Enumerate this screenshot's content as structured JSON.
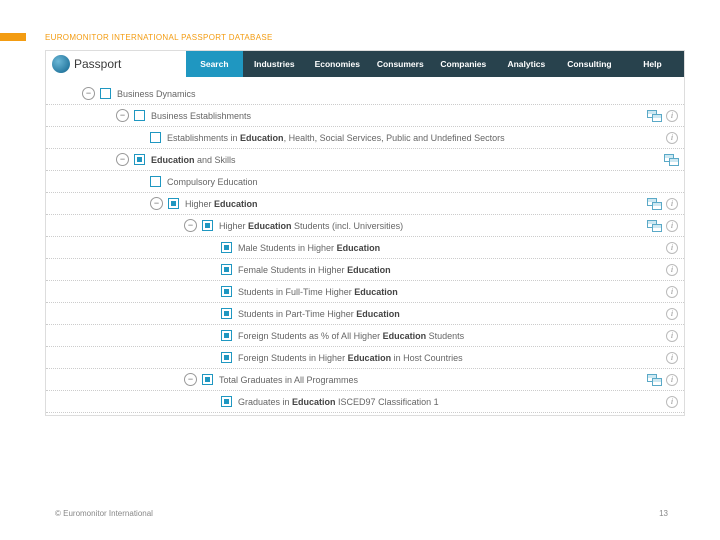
{
  "slide": {
    "title": "EUROMONITOR INTERNATIONAL PASSPORT DATABASE"
  },
  "logo": {
    "text": "Passport"
  },
  "nav": {
    "search": "Search",
    "industries": "Industries",
    "economies": "Economies",
    "consumers": "Consumers",
    "companies": "Companies",
    "analytics": "Analytics",
    "consulting": "Consulting",
    "help": "Help"
  },
  "tree": {
    "r0": {
      "indent": 36,
      "toggle": "−",
      "checked": false,
      "html": "Business Dynamics",
      "grid": false,
      "info": false
    },
    "r1": {
      "indent": 70,
      "toggle": "−",
      "checked": false,
      "html": "Business Establishments",
      "grid": true,
      "info": true
    },
    "r2": {
      "indent": 104,
      "toggle": "",
      "checked": false,
      "html": "Establishments in <b>Education</b>, Health, Social Services, Public and Undefined Sectors",
      "grid": false,
      "info": true
    },
    "r3": {
      "indent": 70,
      "toggle": "−",
      "checked": true,
      "html": "<b>Education</b> and Skills",
      "grid": true,
      "info": false
    },
    "r4": {
      "indent": 104,
      "toggle": "",
      "checked": false,
      "html": "Compulsory Education",
      "grid": false,
      "info": false
    },
    "r5": {
      "indent": 104,
      "toggle": "−",
      "checked": true,
      "html": "Higher <b>Education</b>",
      "grid": true,
      "info": true
    },
    "r6": {
      "indent": 138,
      "toggle": "−",
      "checked": true,
      "html": "Higher <b>Education</b> Students (incl. Universities)",
      "grid": true,
      "info": true
    },
    "r7": {
      "indent": 175,
      "toggle": "",
      "checked": true,
      "html": "Male Students in Higher <b>Education</b>",
      "grid": false,
      "info": true
    },
    "r8": {
      "indent": 175,
      "toggle": "",
      "checked": true,
      "html": "Female Students in Higher <b>Education</b>",
      "grid": false,
      "info": true
    },
    "r9": {
      "indent": 175,
      "toggle": "",
      "checked": true,
      "html": "Students in Full-Time Higher <b>Education</b>",
      "grid": false,
      "info": true
    },
    "r10": {
      "indent": 175,
      "toggle": "",
      "checked": true,
      "html": "Students in Part-Time Higher <b>Education</b>",
      "grid": false,
      "info": true
    },
    "r11": {
      "indent": 175,
      "toggle": "",
      "checked": true,
      "html": "Foreign Students as % of All Higher <b>Education</b> Students",
      "grid": false,
      "info": true
    },
    "r12": {
      "indent": 175,
      "toggle": "",
      "checked": true,
      "html": "Foreign Students in Higher <b>Education</b> in Host Countries",
      "grid": false,
      "info": true
    },
    "r13": {
      "indent": 138,
      "toggle": "−",
      "checked": true,
      "html": "Total Graduates in All Programmes",
      "grid": true,
      "info": true
    },
    "r14": {
      "indent": 175,
      "toggle": "",
      "checked": true,
      "html": "Graduates in <b>Education</b> ISCED97 Classification 1",
      "grid": false,
      "info": true
    }
  },
  "footer": {
    "copyright": "© Euromonitor International",
    "page": "13"
  },
  "colors": {
    "accent": "#1f97c1",
    "brand_orange": "#f39c12",
    "navbar": "#28424d"
  }
}
